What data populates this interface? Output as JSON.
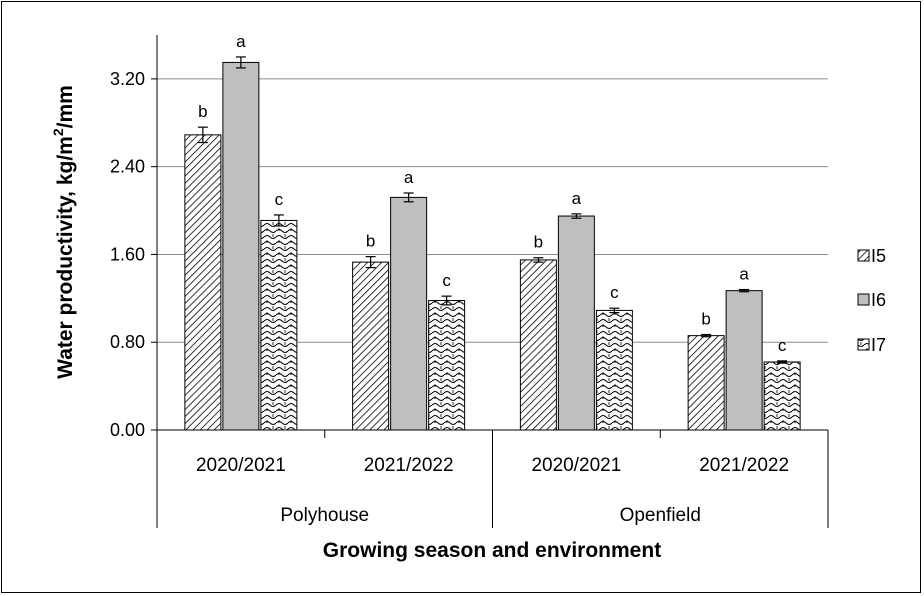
{
  "chart_data": {
    "type": "bar",
    "ylabel_main": "Water productivity, kg/m",
    "ylabel_sup": "2",
    "ylabel_tail": "/mm",
    "xlabel": "Growing season and environment",
    "ylim": [
      0,
      3.6
    ],
    "yticks": [
      "0.00",
      "0.80",
      "1.60",
      "2.40",
      "3.20"
    ],
    "ytick_values": [
      0,
      0.8,
      1.6,
      2.4,
      3.2
    ],
    "grid": true,
    "legend_position": "right",
    "categories": [
      "2020/2021",
      "2021/2022",
      "2020/2021",
      "2021/2022"
    ],
    "groups": [
      {
        "label": "Polyhouse",
        "categories": [
          0,
          1
        ]
      },
      {
        "label": "Openfield",
        "categories": [
          2,
          3
        ]
      }
    ],
    "series": [
      {
        "name": "I5",
        "pattern": "diagonal",
        "values": [
          2.69,
          1.53,
          1.55,
          0.86
        ],
        "errors": [
          0.07,
          0.05,
          0.02,
          0.01
        ],
        "letters": [
          "b",
          "b",
          "b",
          "b"
        ]
      },
      {
        "name": "I6",
        "pattern": "solid-gray",
        "color": "#bfbfbf",
        "values": [
          3.35,
          2.12,
          1.95,
          1.27
        ],
        "errors": [
          0.05,
          0.04,
          0.02,
          0.01
        ],
        "letters": [
          "a",
          "a",
          "a",
          "a"
        ]
      },
      {
        "name": "I7",
        "pattern": "wave",
        "values": [
          1.91,
          1.18,
          1.09,
          0.62
        ],
        "errors": [
          0.05,
          0.04,
          0.02,
          0.01
        ],
        "letters": [
          "c",
          "c",
          "c",
          "c"
        ]
      }
    ]
  }
}
